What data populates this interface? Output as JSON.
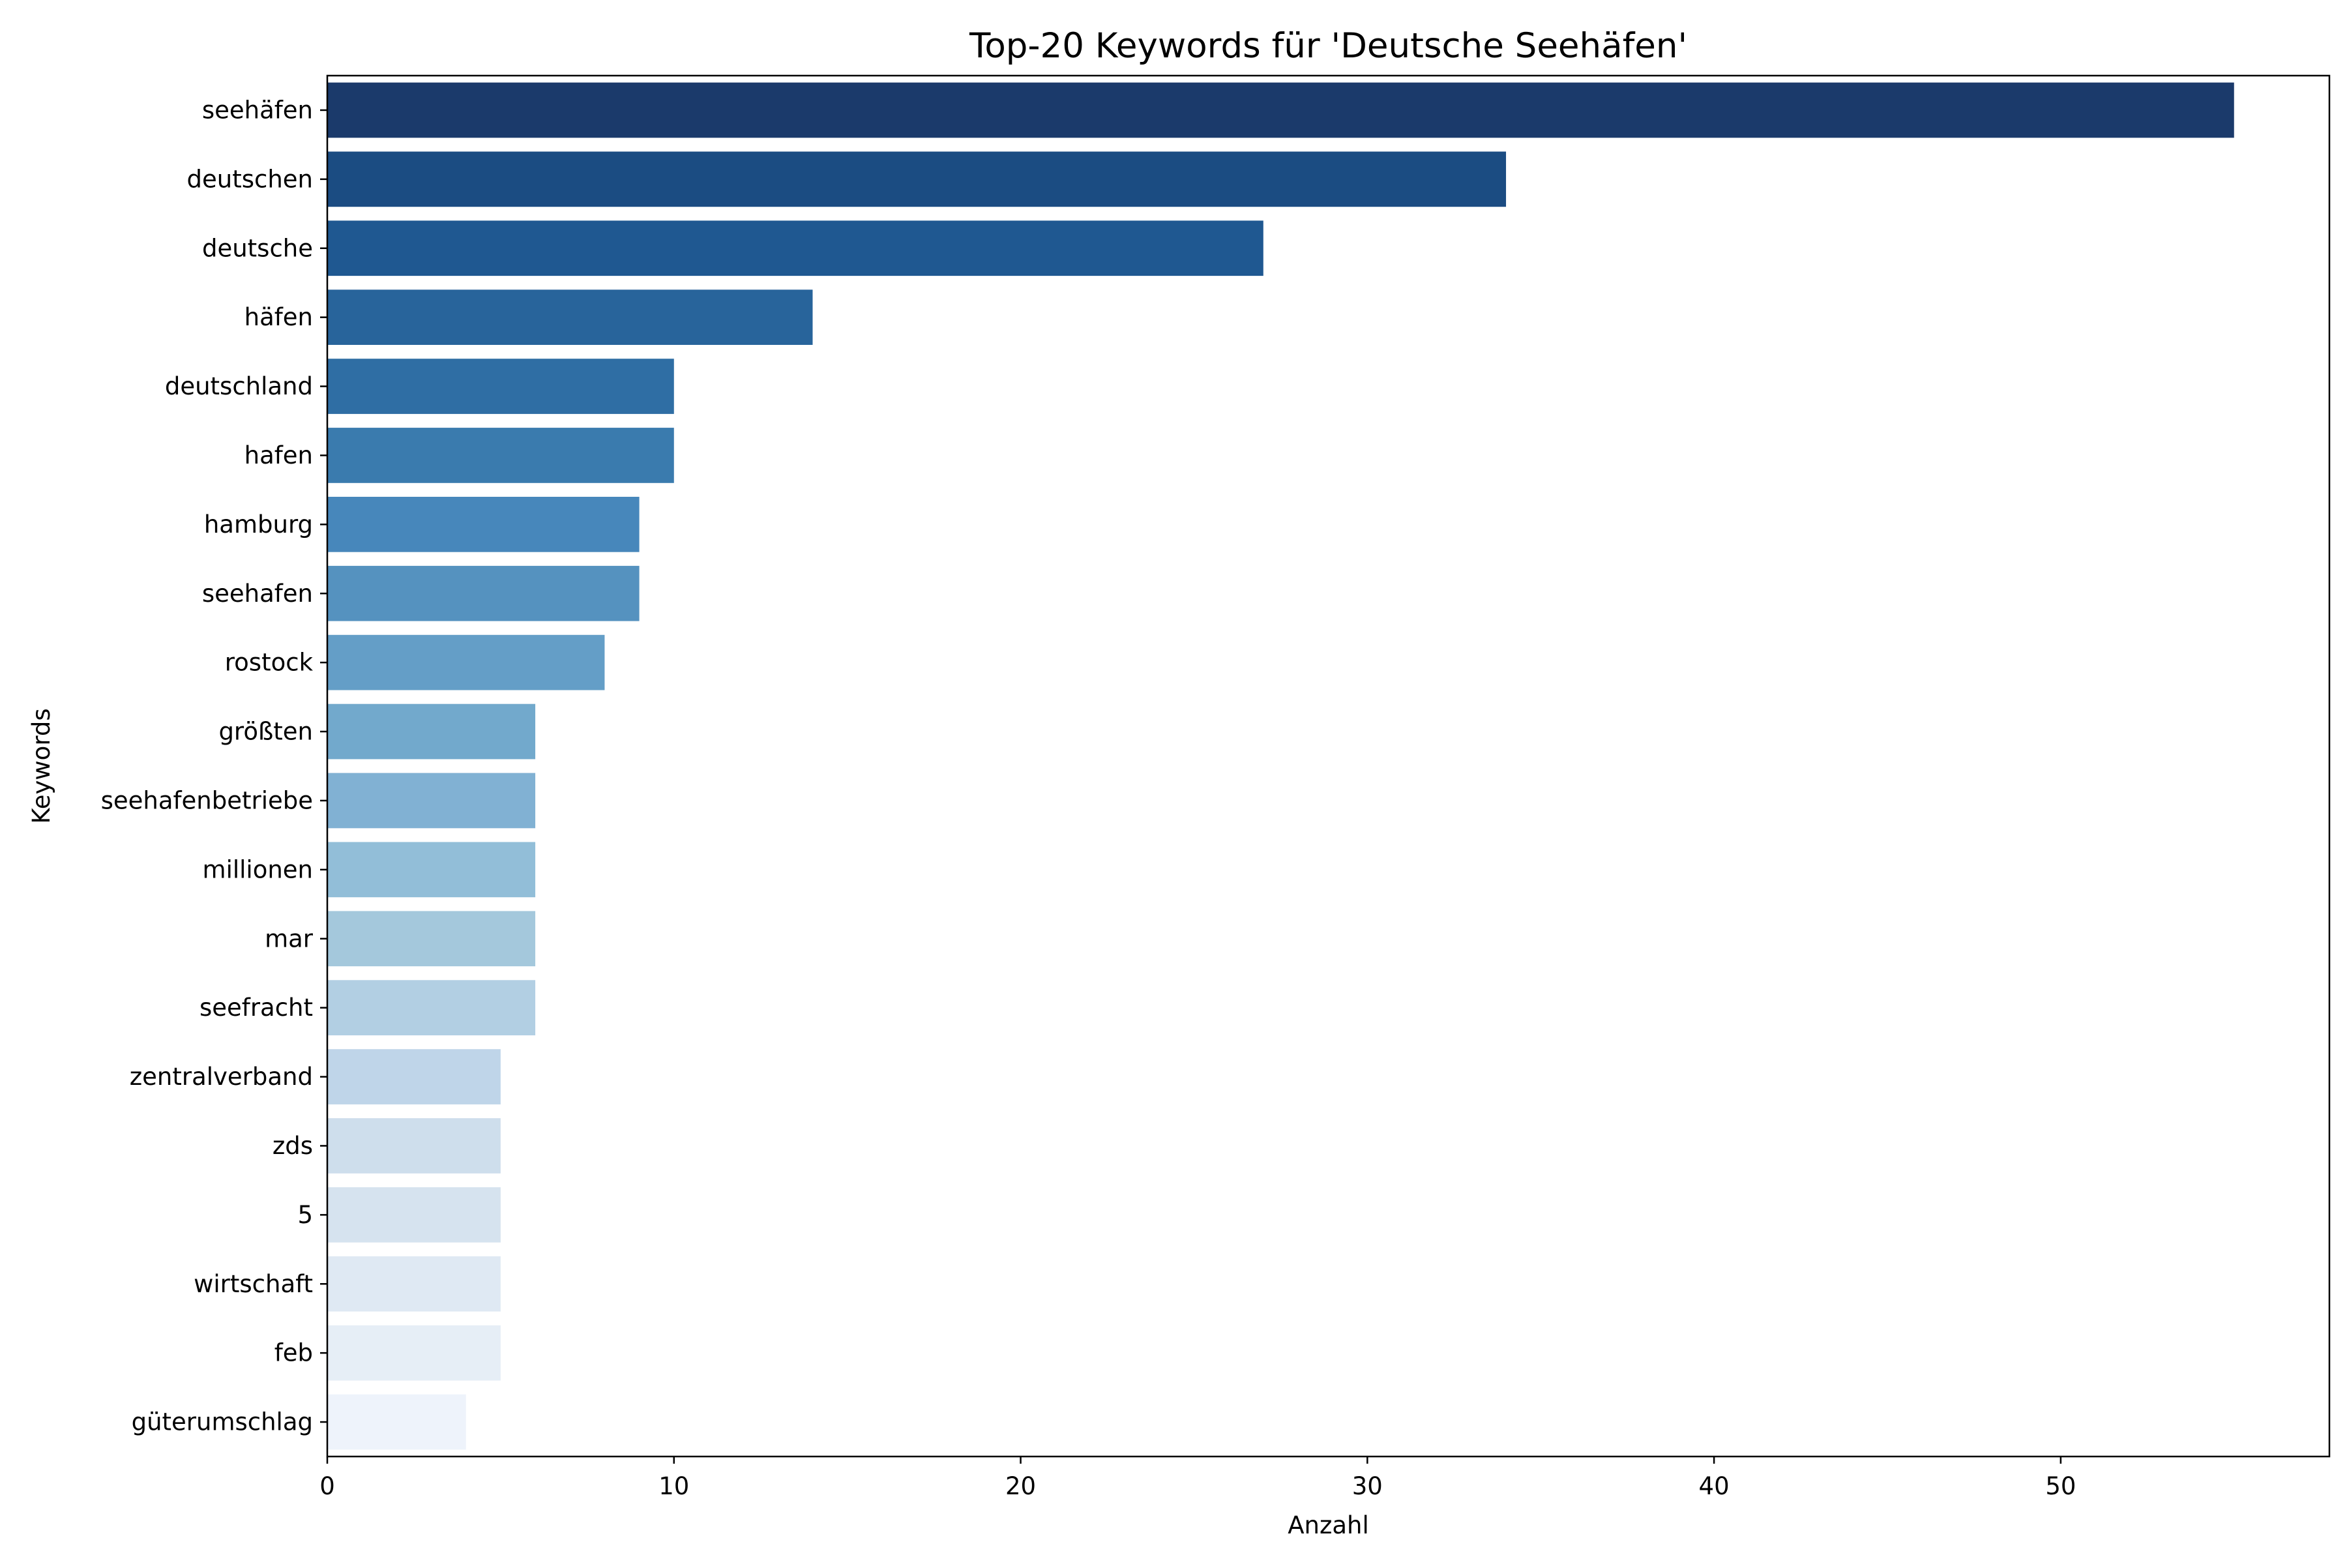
{
  "chart_data": {
    "type": "bar",
    "orientation": "horizontal",
    "title": "Top-20 Keywords für 'Deutsche Seehäfen'",
    "xlabel": "Anzahl",
    "ylabel": "Keywords",
    "xlim": [
      0,
      57.75
    ],
    "x_ticks": [
      0,
      10,
      20,
      30,
      40,
      50
    ],
    "x_tick_labels": [
      "0",
      "10",
      "20",
      "30",
      "40",
      "50"
    ],
    "grid": false,
    "legend": "none",
    "palette": "Blues (dark to light)",
    "categories": [
      "seehäfen",
      "deutschen",
      "deutsche",
      "häfen",
      "deutschland",
      "hafen",
      "hamburg",
      "seehafen",
      "rostock",
      "größten",
      "seehafenbetriebe",
      "millionen",
      "mar",
      "seefracht",
      "zentralverband",
      "zds",
      "5",
      "wirtschaft",
      "feb",
      "güterumschlag"
    ],
    "values": [
      55,
      34,
      27,
      14,
      10,
      10,
      9,
      9,
      8,
      6,
      6,
      6,
      6,
      6,
      5,
      5,
      5,
      5,
      5,
      4
    ],
    "colors": [
      "#1b3a6b",
      "#1b4c82",
      "#1f5891",
      "#28649b",
      "#2f6ea4",
      "#3a7bae",
      "#4787bb",
      "#5592bf",
      "#649ec7",
      "#72a9cc",
      "#81b1d3",
      "#92bed8",
      "#a4c8dc",
      "#b2cfe3",
      "#bfd5e9",
      "#cedeec",
      "#d6e3ef",
      "#dfe9f3",
      "#e6eef6",
      "#eef3fb"
    ]
  }
}
